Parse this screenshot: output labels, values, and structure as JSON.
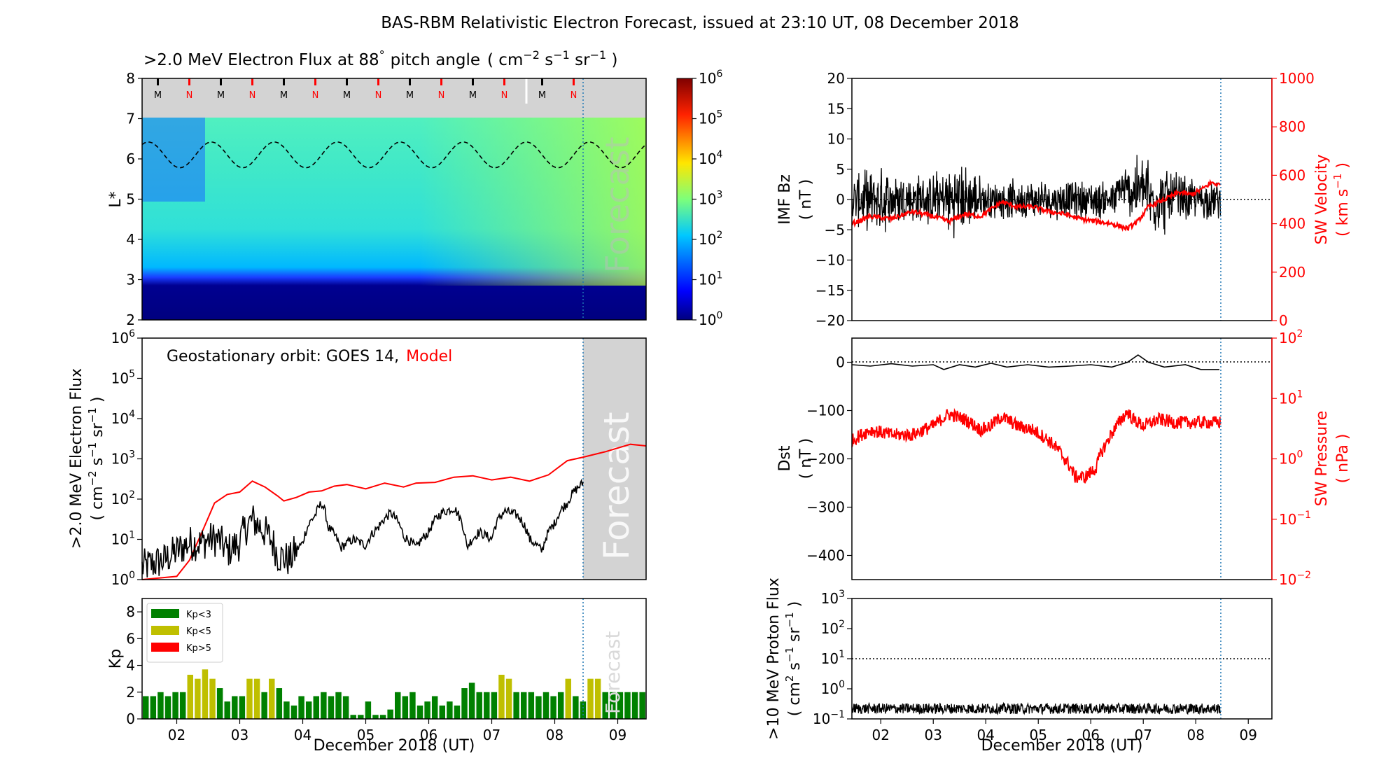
{
  "figure": {
    "suptitle": "BAS-RBM Relativistic Electron Forecast, issued at 23:10 UT, 08 December 2018",
    "colors": {
      "model": "#ff0000",
      "obs": "#000000",
      "forecast_line": "#1f77b4",
      "forecast_shade": "#d3d3d3"
    }
  },
  "chart_data": [
    {
      "id": "lstar",
      "type": "heatmap",
      "title": ">2.0 MeV Electron Flux at 88",
      "title_deg": "°",
      "title_rest": "pitch angle",
      "title_units": {
        "open": "( cm",
        "e1": "−2",
        "s": " s",
        "e2": "−1",
        "sr": " sr",
        "e3": "−1",
        "close": " )"
      },
      "ylabel": "L*",
      "ylim": [
        2,
        8
      ],
      "yticks": [
        "2",
        "3",
        "4",
        "5",
        "6",
        "7",
        "8"
      ],
      "xlim": [
        1.45,
        9.45
      ],
      "forecast_x": 8.47,
      "forecast_text": "Forecast",
      "mn_markers": [
        {
          "x": 1.7,
          "label": "M"
        },
        {
          "x": 2.2,
          "label": "N"
        },
        {
          "x": 2.7,
          "label": "M"
        },
        {
          "x": 3.2,
          "label": "N"
        },
        {
          "x": 3.7,
          "label": "M"
        },
        {
          "x": 4.2,
          "label": "N"
        },
        {
          "x": 4.7,
          "label": "M"
        },
        {
          "x": 5.2,
          "label": "N"
        },
        {
          "x": 5.7,
          "label": "M"
        },
        {
          "x": 6.2,
          "label": "N"
        },
        {
          "x": 6.7,
          "label": "M"
        },
        {
          "x": 7.2,
          "label": "N"
        },
        {
          "x": 7.8,
          "label": "M"
        },
        {
          "x": 8.3,
          "label": "N"
        }
      ],
      "colorbar": {
        "scale": "log",
        "ticks": [
          {
            "m": "10",
            "e": "0"
          },
          {
            "m": "10",
            "e": "1"
          },
          {
            "m": "10",
            "e": "2"
          },
          {
            "m": "10",
            "e": "3"
          },
          {
            "m": "10",
            "e": "4"
          },
          {
            "m": "10",
            "e": "5"
          },
          {
            "m": "10",
            "e": "6"
          }
        ]
      }
    },
    {
      "id": "geo",
      "type": "line",
      "ylabel": ">2.0 MeV Electron Flux",
      "ylabel2": {
        "open": "( cm",
        "e1": "−2",
        "s": " s",
        "e2": "−1",
        "sr": " sr",
        "e3": "−1",
        "close": " )"
      },
      "yscale": "log",
      "ylim": [
        1,
        1000000
      ],
      "yticks": [
        {
          "m": "10",
          "e": "0"
        },
        {
          "m": "10",
          "e": "1"
        },
        {
          "m": "10",
          "e": "2"
        },
        {
          "m": "10",
          "e": "3"
        },
        {
          "m": "10",
          "e": "4"
        },
        {
          "m": "10",
          "e": "5"
        },
        {
          "m": "10",
          "e": "6"
        }
      ],
      "annotation": "Geostationary orbit:   GOES 14,",
      "annotation_model": "Model",
      "forecast_text": "Forecast",
      "forecast_x": 8.47,
      "model": {
        "x": [
          1.45,
          2.0,
          2.2,
          2.4,
          2.6,
          2.8,
          3.0,
          3.2,
          3.4,
          3.6,
          3.7,
          3.9,
          4.1,
          4.3,
          4.5,
          4.7,
          5.0,
          5.3,
          5.6,
          5.8,
          6.1,
          6.4,
          6.7,
          7.0,
          7.3,
          7.6,
          7.9,
          8.2,
          8.45,
          8.8,
          9.2,
          9.45
        ],
        "y": [
          1,
          1.2,
          3,
          15,
          80,
          130,
          150,
          280,
          200,
          120,
          90,
          110,
          150,
          160,
          210,
          230,
          180,
          250,
          200,
          250,
          260,
          350,
          380,
          300,
          350,
          280,
          400,
          900,
          1100,
          1500,
          2300,
          2100
        ]
      },
      "obs": {
        "x": [
          1.45,
          1.8,
          2.0,
          2.2,
          2.4,
          2.5,
          2.65,
          2.8,
          3.0,
          3.2,
          3.4,
          3.6,
          3.8,
          4.0,
          4.2,
          4.3,
          4.4,
          4.6,
          4.8,
          5.0,
          5.2,
          5.4,
          5.6,
          5.8,
          6.0,
          6.2,
          6.4,
          6.6,
          6.8,
          7.0,
          7.2,
          7.4,
          7.6,
          7.8,
          8.0,
          8.2,
          8.45
        ],
        "y": [
          2,
          3,
          5,
          8,
          8,
          10,
          10,
          5,
          8,
          30,
          15,
          4,
          3,
          8,
          40,
          80,
          20,
          6,
          10,
          7,
          20,
          45,
          12,
          6,
          15,
          45,
          60,
          6,
          15,
          10,
          50,
          40,
          10,
          5,
          25,
          80,
          250
        ]
      }
    },
    {
      "id": "kp",
      "type": "bar",
      "ylabel": "Kp",
      "ylim": [
        0,
        9
      ],
      "yticks": [
        "0",
        "2",
        "4",
        "6",
        "8"
      ],
      "xlabel": "December 2018 (UT)",
      "xticks": [
        "02",
        "03",
        "04",
        "05",
        "06",
        "07",
        "08",
        "09"
      ],
      "forecast_text": "Forecast",
      "forecast_x": 8.47,
      "legend": [
        {
          "label": "Kp<3",
          "color": "#008000"
        },
        {
          "label": "Kp<5",
          "color": "#bfbf00"
        },
        {
          "label": "Kp>5",
          "color": "#ff0000"
        }
      ],
      "values": [
        1.7,
        1.7,
        2.0,
        1.7,
        2.0,
        2.0,
        3.3,
        3.0,
        3.7,
        3.0,
        2.3,
        1.3,
        1.7,
        1.7,
        3.0,
        3.0,
        2.0,
        3.0,
        2.3,
        1.3,
        1.0,
        1.7,
        1.3,
        1.7,
        2.0,
        1.7,
        2.0,
        1.7,
        0.3,
        0.3,
        1.3,
        0.3,
        0.3,
        0.7,
        2.0,
        1.7,
        2.0,
        1.0,
        1.3,
        1.7,
        1.0,
        1.3,
        1.0,
        2.3,
        2.7,
        2.0,
        2.0,
        2.0,
        3.3,
        3.0,
        2.0,
        2.0,
        2.0,
        1.7,
        2.0,
        1.7,
        2.0,
        3.0,
        1.7,
        1.3,
        3.0,
        3.0,
        2.0,
        2.0,
        2.0,
        2.0,
        2.0,
        2.0
      ]
    },
    {
      "id": "imf",
      "type": "line",
      "ylabel": "IMF Bz",
      "ylabel2": "( nT )",
      "ylim": [
        -20,
        20
      ],
      "yticks": [
        "−20",
        "−15",
        "−10",
        "−5",
        "0",
        "5",
        "10",
        "15",
        "20"
      ],
      "y2label": "SW Velocity",
      "y2label2": {
        "open": "( km s",
        "e": "−1",
        "close": " )"
      },
      "y2lim": [
        0,
        1000
      ],
      "y2ticks": [
        "0",
        "200",
        "400",
        "600",
        "800",
        "1000"
      ],
      "forecast_x": 8.47,
      "bz_envelope": {
        "x": [
          1.45,
          2.0,
          2.5,
          3.0,
          3.5,
          4.0,
          4.5,
          5.0,
          5.5,
          6.0,
          6.5,
          7.0,
          7.5,
          8.0,
          8.45
        ],
        "amp": [
          4,
          5,
          4,
          4,
          6,
          3,
          3,
          3,
          3,
          3,
          3,
          6,
          5,
          3,
          3
        ]
      },
      "velocity": {
        "x": [
          1.45,
          1.8,
          2.2,
          2.6,
          3.0,
          3.3,
          3.6,
          3.9,
          4.1,
          4.3,
          4.6,
          4.9,
          5.2,
          5.5,
          5.8,
          6.1,
          6.4,
          6.7,
          6.9,
          7.1,
          7.4,
          7.7,
          7.9,
          8.1,
          8.3,
          8.45
        ],
        "y": [
          400,
          430,
          420,
          450,
          430,
          410,
          440,
          430,
          460,
          490,
          470,
          470,
          450,
          440,
          420,
          410,
          400,
          380,
          410,
          470,
          500,
          530,
          520,
          540,
          570,
          560
        ]
      }
    },
    {
      "id": "dst",
      "type": "line",
      "ylabel": "Dst",
      "ylabel2": "( nT )",
      "ylim": [
        -450,
        50
      ],
      "yticks": [
        "−400",
        "−300",
        "−200",
        "−100",
        "0"
      ],
      "y2label": "SW Pressure",
      "y2label2": "( nPa )",
      "y2scale": "log",
      "y2lim": [
        0.01,
        100
      ],
      "y2ticks": [
        {
          "m": "10",
          "e": "−2"
        },
        {
          "m": "10",
          "e": "−1"
        },
        {
          "m": "10",
          "e": "0"
        },
        {
          "m": "10",
          "e": "1"
        },
        {
          "m": "10",
          "e": "2"
        }
      ],
      "forecast_x": 8.47,
      "dst": {
        "x": [
          1.45,
          1.8,
          2.2,
          2.6,
          3.0,
          3.2,
          3.5,
          3.8,
          4.1,
          4.4,
          4.8,
          5.2,
          5.6,
          6.0,
          6.4,
          6.7,
          6.9,
          7.1,
          7.4,
          7.8,
          8.1,
          8.45
        ],
        "y": [
          -5,
          -8,
          -3,
          -8,
          -5,
          -15,
          -5,
          -10,
          -2,
          -10,
          -5,
          -10,
          -8,
          -5,
          -10,
          0,
          15,
          0,
          -10,
          -5,
          -15,
          -15
        ]
      },
      "pressure": {
        "x": [
          1.45,
          1.8,
          2.2,
          2.6,
          3.0,
          3.3,
          3.6,
          3.9,
          4.1,
          4.3,
          4.6,
          4.9,
          5.2,
          5.5,
          5.7,
          5.9,
          6.1,
          6.3,
          6.5,
          6.7,
          6.8,
          7.0,
          7.3,
          7.6,
          7.9,
          8.2,
          8.45
        ],
        "y": [
          2.0,
          3.0,
          2.5,
          2.5,
          3.5,
          5.5,
          4.5,
          3.0,
          3.5,
          5.0,
          3.5,
          3.0,
          2.0,
          1.0,
          0.5,
          0.5,
          0.7,
          1.8,
          3.5,
          6.0,
          4.5,
          3.5,
          4.5,
          4.0,
          4.0,
          4.0,
          4.0
        ]
      }
    },
    {
      "id": "proton",
      "type": "line",
      "ylabel": ">10 MeV Proton Flux",
      "ylabel2": {
        "open": "( cm",
        "e1": "2",
        "s": " s",
        "e2": "−1",
        "sr": " sr",
        "e3": "−1",
        "close": " )"
      },
      "yscale": "log",
      "ylim": [
        0.1,
        1000
      ],
      "yticks": [
        {
          "m": "10",
          "e": "−1"
        },
        {
          "m": "10",
          "e": "0"
        },
        {
          "m": "10",
          "e": "1"
        },
        {
          "m": "10",
          "e": "2"
        },
        {
          "m": "10",
          "e": "3"
        }
      ],
      "threshold": 10,
      "xlabel": "December 2018 (UT)",
      "xticks": [
        "02",
        "03",
        "04",
        "05",
        "06",
        "07",
        "08",
        "09"
      ],
      "forecast_x": 8.47,
      "level": 0.22
    }
  ]
}
